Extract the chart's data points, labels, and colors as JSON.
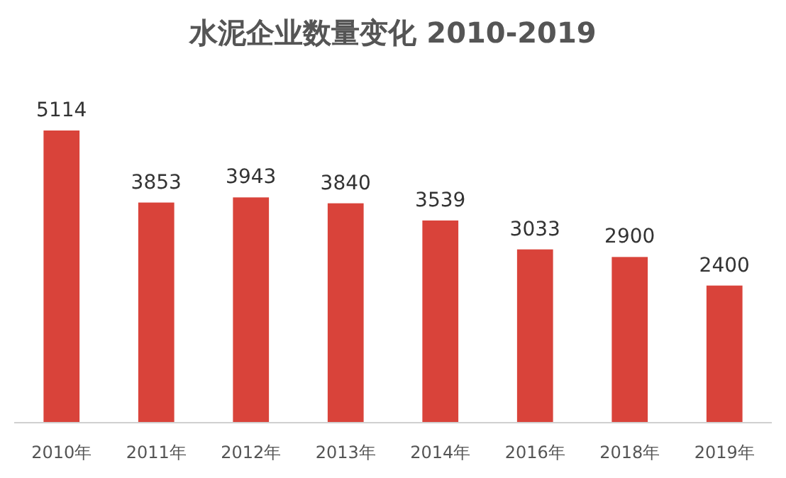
{
  "chart_data": {
    "type": "bar",
    "title": "水泥企业数量变化 2010-2019",
    "categories": [
      "2010年",
      "2011年",
      "2012年",
      "2013年",
      "2014年",
      "2016年",
      "2018年",
      "2019年"
    ],
    "values": [
      5114,
      3853,
      3943,
      3840,
      3539,
      3033,
      2900,
      2400
    ],
    "color": "#d9433a",
    "data_labels": true
  }
}
